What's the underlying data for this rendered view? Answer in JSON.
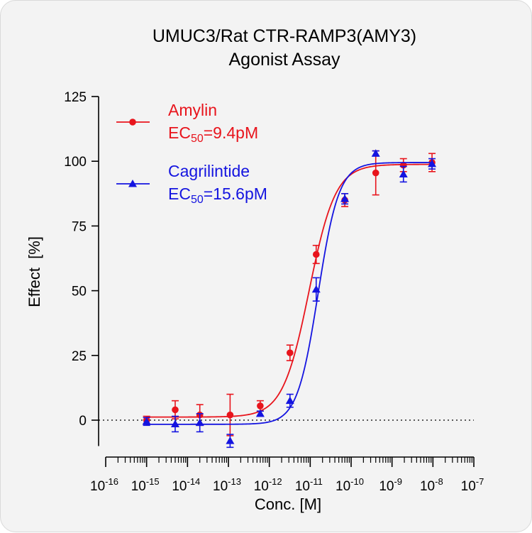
{
  "chart_data": {
    "type": "scatter",
    "title": [
      "UMUC3/Rat CTR-RAMP3(AMY3)",
      "Agonist Assay"
    ],
    "xlabel": "Conc. [M]",
    "ylabel": "Effect  [%]",
    "x_scale": "log",
    "xlim": [
      1e-16,
      1e-07
    ],
    "ylim": [
      -10,
      125
    ],
    "x_ticks": [
      {
        "base": "10",
        "exp": "-16",
        "value": 1e-16
      },
      {
        "base": "10",
        "exp": "-15",
        "value": 1e-15
      },
      {
        "base": "10",
        "exp": "-14",
        "value": 1e-14
      },
      {
        "base": "10",
        "exp": "-13",
        "value": 1e-13
      },
      {
        "base": "10",
        "exp": "-12",
        "value": 1e-12
      },
      {
        "base": "10",
        "exp": "-11",
        "value": 1e-11
      },
      {
        "base": "10",
        "exp": "-10",
        "value": 1e-10
      },
      {
        "base": "10",
        "exp": "-9",
        "value": 1e-09
      },
      {
        "base": "10",
        "exp": "-8",
        "value": 1e-08
      },
      {
        "base": "10",
        "exp": "-7",
        "value": 1e-07
      }
    ],
    "y_ticks": [
      "0",
      "25",
      "50",
      "75",
      "100",
      "125"
    ],
    "y_tick_values": [
      0,
      25,
      50,
      75,
      100,
      125
    ],
    "reference_line": {
      "y": 0,
      "style": "dotted"
    },
    "legend_position": "top-left",
    "series": [
      {
        "name": "Amylin",
        "ec50_label": {
          "prefix": "EC",
          "sub": "50",
          "suffix": "=9.4pM"
        },
        "color": "#e8141c",
        "marker": "circle",
        "fit": {
          "bottom": 1.2,
          "top": 98.8,
          "ec50": 9.4e-12,
          "hill": 1.35
        },
        "x": [
          1e-15,
          5e-15,
          2e-14,
          1.1e-13,
          6e-13,
          3.2e-12,
          1.4e-11,
          7e-11,
          4e-10,
          1.9e-09,
          9.5e-09
        ],
        "y": [
          0,
          4,
          2,
          2,
          5.5,
          26,
          64,
          85,
          95.5,
          98.5,
          99.5
        ],
        "err": [
          1.5,
          3.5,
          4,
          8,
          2,
          3,
          3.5,
          2.5,
          8.5,
          2.5,
          3.5
        ]
      },
      {
        "name": "Cagrilintide",
        "ec50_label": {
          "prefix": "EC",
          "sub": "50",
          "suffix": "=15.6pM"
        },
        "color": "#1414e0",
        "marker": "triangle",
        "fit": {
          "bottom": -1.6,
          "top": 99.5,
          "ec50": 1.56e-11,
          "hill": 1.7
        },
        "x": [
          1e-15,
          5e-15,
          2e-14,
          1.1e-13,
          6e-13,
          3.2e-12,
          1.4e-11,
          7e-11,
          4e-10,
          1.9e-09,
          9.5e-09
        ],
        "y": [
          -0.5,
          -1.5,
          -1,
          -8,
          2.5,
          7.5,
          50.5,
          85.5,
          103,
          95,
          99
        ],
        "err": [
          1.5,
          3,
          3.5,
          2.5,
          1,
          2.5,
          4.5,
          2,
          1,
          3,
          2
        ]
      }
    ]
  }
}
